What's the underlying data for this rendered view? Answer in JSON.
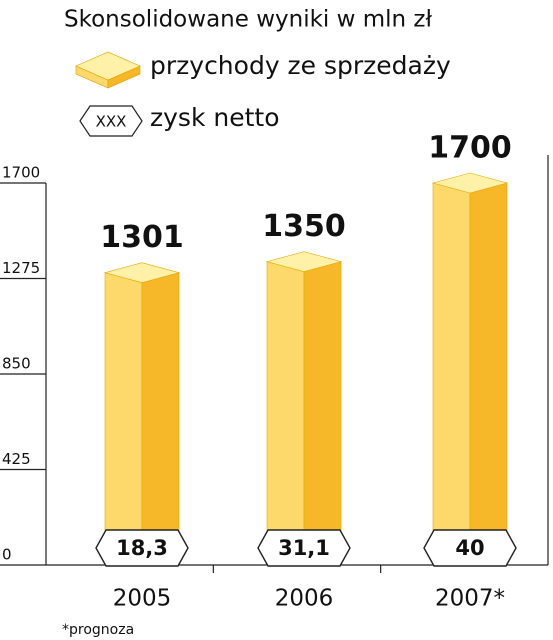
{
  "chart_data": {
    "type": "bar",
    "title": "Skonsolidowane wyniki  w mln zł",
    "categories": [
      "2005",
      "2006",
      "2007*"
    ],
    "series": [
      {
        "name": "przychody ze sprzedaży",
        "color": "#fcc83a",
        "values": [
          1301,
          1350,
          1700
        ]
      },
      {
        "name": "zysk netto",
        "color": "#ffffff",
        "legend_symbol": "XXX",
        "values": [
          18.3,
          31.1,
          40
        ],
        "value_labels": [
          "18,3",
          "31,1",
          "40"
        ]
      }
    ],
    "ylim": [
      0,
      1700
    ],
    "yticks": [
      0,
      425,
      850,
      1275,
      1700
    ],
    "footnote": "*prognoza"
  }
}
